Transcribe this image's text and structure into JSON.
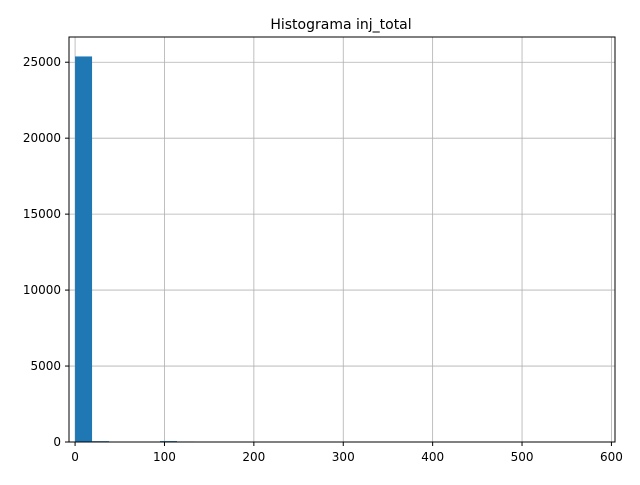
{
  "chart_data": {
    "type": "bar",
    "title": "Histograma inj_total",
    "xlabel": "",
    "ylabel": "",
    "xlim": [
      -6.8,
      604
    ],
    "ylim": [
      0,
      26660
    ],
    "grid": true,
    "bar_color": "#1f77b4",
    "x_ticks": [
      0,
      100,
      200,
      300,
      400,
      500,
      600
    ],
    "x_tick_labels": [
      "0",
      "100",
      "200",
      "300",
      "400",
      "500",
      "600"
    ],
    "y_ticks": [
      0,
      5000,
      10000,
      15000,
      20000,
      25000
    ],
    "y_tick_labels": [
      "0",
      "5000",
      "10000",
      "15000",
      "20000",
      "25000"
    ],
    "bins": [
      {
        "x0": 0,
        "x1": 19,
        "count": 25380
      },
      {
        "x0": 19,
        "x1": 38,
        "count": 55
      },
      {
        "x0": 38,
        "x1": 57,
        "count": 30
      },
      {
        "x0": 57,
        "x1": 76,
        "count": 20
      },
      {
        "x0": 76,
        "x1": 95,
        "count": 8
      },
      {
        "x0": 95,
        "x1": 114,
        "count": 60
      },
      {
        "x0": 114,
        "x1": 133,
        "count": 35
      },
      {
        "x0": 133,
        "x1": 152,
        "count": 25
      },
      {
        "x0": 152,
        "x1": 171,
        "count": 20
      },
      {
        "x0": 171,
        "x1": 190,
        "count": 15
      },
      {
        "x0": 190,
        "x1": 209,
        "count": 3
      },
      {
        "x0": 209,
        "x1": 228,
        "count": 2
      },
      {
        "x0": 228,
        "x1": 247,
        "count": 2
      },
      {
        "x0": 247,
        "x1": 266,
        "count": 1
      },
      {
        "x0": 266,
        "x1": 285,
        "count": 1
      },
      {
        "x0": 285,
        "x1": 304,
        "count": 1
      },
      {
        "x0": 304,
        "x1": 323,
        "count": 1
      },
      {
        "x0": 323,
        "x1": 342,
        "count": 0
      },
      {
        "x0": 342,
        "x1": 361,
        "count": 1
      },
      {
        "x0": 361,
        "x1": 380,
        "count": 0
      },
      {
        "x0": 380,
        "x1": 399,
        "count": 0
      },
      {
        "x0": 399,
        "x1": 418,
        "count": 1
      },
      {
        "x0": 418,
        "x1": 437,
        "count": 0
      },
      {
        "x0": 437,
        "x1": 456,
        "count": 0
      },
      {
        "x0": 456,
        "x1": 475,
        "count": 0
      },
      {
        "x0": 475,
        "x1": 494,
        "count": 0
      },
      {
        "x0": 494,
        "x1": 513,
        "count": 0
      },
      {
        "x0": 513,
        "x1": 532,
        "count": 1
      },
      {
        "x0": 532,
        "x1": 551,
        "count": 0
      },
      {
        "x0": 551,
        "x1": 570,
        "count": 1
      }
    ]
  }
}
